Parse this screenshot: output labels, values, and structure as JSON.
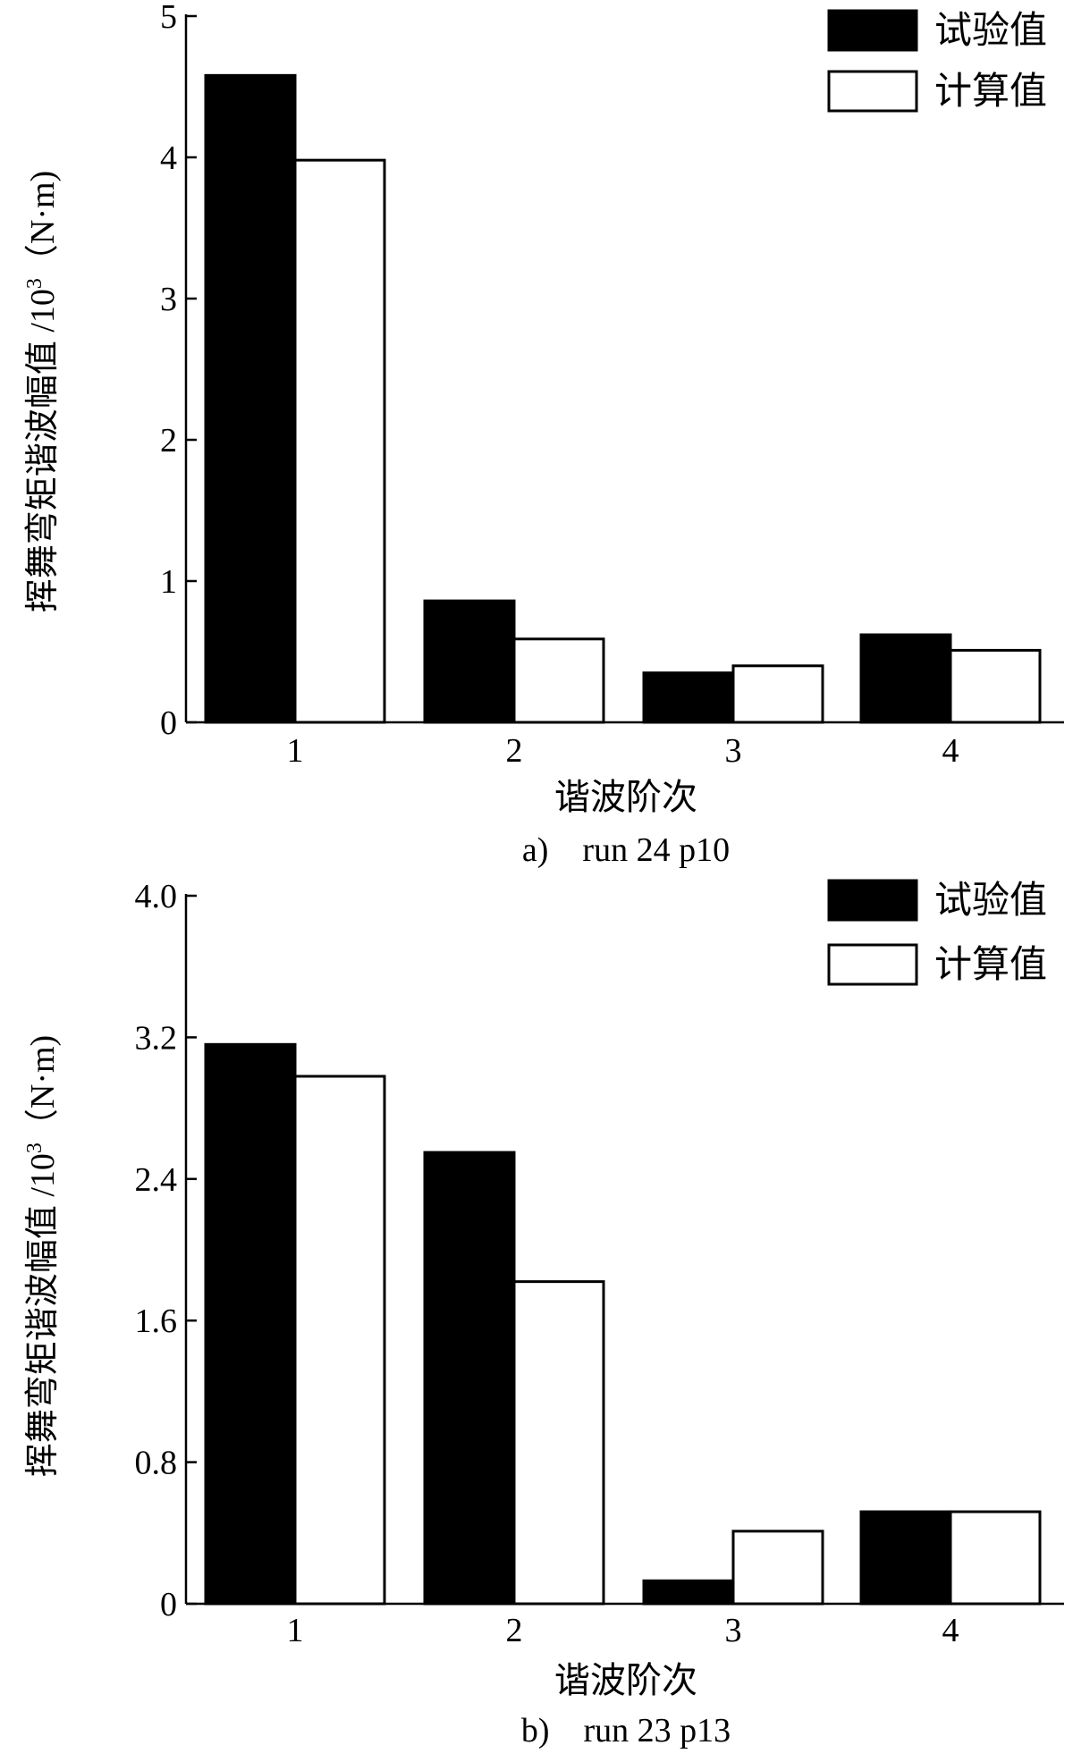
{
  "chart_data": [
    {
      "type": "bar",
      "caption": "a)　run 24 p10",
      "categories": [
        "1",
        "2",
        "3",
        "4"
      ],
      "xlabel": "谐波阶次",
      "ylabel": "挥舞弯矩谐波幅值 /10",
      "ylabel_sup": "3",
      "ylabel_unit": "（N·m)",
      "ylim": [
        0,
        5
      ],
      "yticks": [
        "0",
        "1",
        "2",
        "3",
        "4",
        "5"
      ],
      "series": [
        {
          "name": "试验值",
          "values": [
            4.58,
            0.86,
            0.35,
            0.62
          ],
          "color": "#000000"
        },
        {
          "name": "计算值",
          "values": [
            3.98,
            0.59,
            0.4,
            0.51
          ],
          "color": "#ffffff"
        }
      ],
      "legend": "top-right",
      "grid": false
    },
    {
      "type": "bar",
      "caption": "b)　run 23 p13",
      "categories": [
        "1",
        "2",
        "3",
        "4"
      ],
      "xlabel": "谐波阶次",
      "ylabel": "挥舞弯矩谐波幅值 /10",
      "ylabel_sup": "3",
      "ylabel_unit": "（N·m)",
      "ylim": [
        0,
        4.0
      ],
      "yticks": [
        "0",
        "0.8",
        "1.6",
        "2.4",
        "3.2",
        "4.0"
      ],
      "series": [
        {
          "name": "试验值",
          "values": [
            3.16,
            2.55,
            0.13,
            0.52
          ],
          "color": "#000000"
        },
        {
          "name": "计算值",
          "values": [
            2.98,
            1.82,
            0.41,
            0.52
          ],
          "color": "#ffffff"
        }
      ],
      "legend": "top-right",
      "grid": false
    }
  ]
}
